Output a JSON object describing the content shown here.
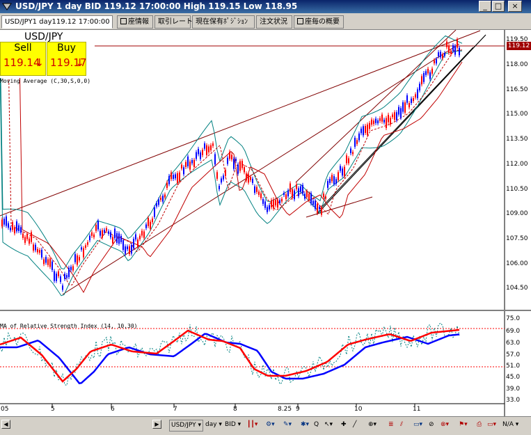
{
  "window": {
    "title": "USD/JPY 1 day BID 119.12 17:00:00 High 119.15 Low 118.95",
    "controls": [
      "_",
      "□",
      "×"
    ]
  },
  "tabs": [
    {
      "label": "USD/JPY1 day119.12 17:00:00",
      "active": true,
      "box": false
    },
    {
      "label": "座情報",
      "active": false,
      "box": true
    },
    {
      "label": "取引レート",
      "active": false,
      "box": false
    },
    {
      "label": "現在保有ﾎﾟｼﾞｼｮﾝ",
      "active": false,
      "box": false
    },
    {
      "label": "注文状況",
      "active": false,
      "box": false
    },
    {
      "label": "座毎の概要",
      "active": false,
      "box": true
    }
  ],
  "quote": {
    "pair": "USD/JPY",
    "sell_label": "Sell",
    "sell_price": "119.14",
    "buy_label": "Buy",
    "buy_price": "119.17",
    "arrow": "↓"
  },
  "indicators": {
    "ma_label": "Moving Average (C,30,S,0,0)",
    "rsi_label": "MA of Relative Strength Index (14, 10,30)"
  },
  "price_axis": [
    "119.50",
    "118.00",
    "116.50",
    "115.00",
    "113.50",
    "112.00",
    "110.50",
    "109.00",
    "107.50",
    "106.00",
    "104.50"
  ],
  "current_price": "119.12",
  "rsi_axis": [
    "75.0",
    "69.0",
    "63.0",
    "57.0",
    "51.0",
    "45.0",
    "39.0",
    "33.0"
  ],
  "x_axis": [
    "05",
    "5",
    "6",
    "7",
    "8",
    "8.25",
    "9",
    "10",
    "11"
  ],
  "bottom": {
    "symbol": "USD/JPY",
    "period": "day",
    "side": "BID",
    "zoom": "N/A"
  },
  "colors": {
    "up": "#0000ff",
    "down": "#ff0000",
    "band": "#008080",
    "trend": "#800000",
    "rsi": "#ff0000",
    "rsi_ma": "#0000ff"
  }
}
